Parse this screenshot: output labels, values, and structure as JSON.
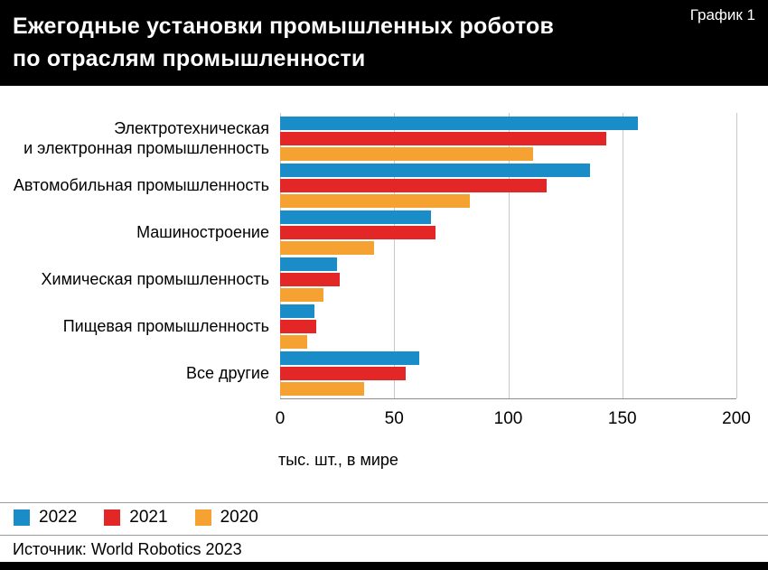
{
  "header": {
    "title_line1": "Ежегодные установки промышленных роботов",
    "title_line2": "по отраслям промышленности",
    "corner_label": "График 1"
  },
  "chart_data": {
    "type": "bar",
    "orientation": "horizontal",
    "title": "Ежегодные установки промышленных роботов по отраслям промышленности",
    "categories": [
      "Электротехническая\nи электронная промышленность",
      "Автомобильная промышленность",
      "Машиностроение",
      "Химическая промышленность",
      "Пищевая промышленность",
      "Все другие"
    ],
    "series": [
      {
        "name": "2022",
        "color": "#1a8cc8",
        "values": [
          157,
          136,
          66,
          25,
          15,
          61
        ]
      },
      {
        "name": "2021",
        "color": "#e32626",
        "values": [
          143,
          117,
          68,
          26,
          16,
          55
        ]
      },
      {
        "name": "2020",
        "color": "#f6a233",
        "values": [
          111,
          83,
          41,
          19,
          12,
          37
        ]
      }
    ],
    "xlim": [
      0,
      200
    ],
    "xticks": [
      0,
      50,
      100,
      150,
      200
    ],
    "xlabel": "тыс. шт., в мире",
    "grid": true,
    "grid_color": "#c9c9c9",
    "legend_position": "bottom-left"
  },
  "footer": {
    "source": "Источник: World Robotics 2023"
  }
}
